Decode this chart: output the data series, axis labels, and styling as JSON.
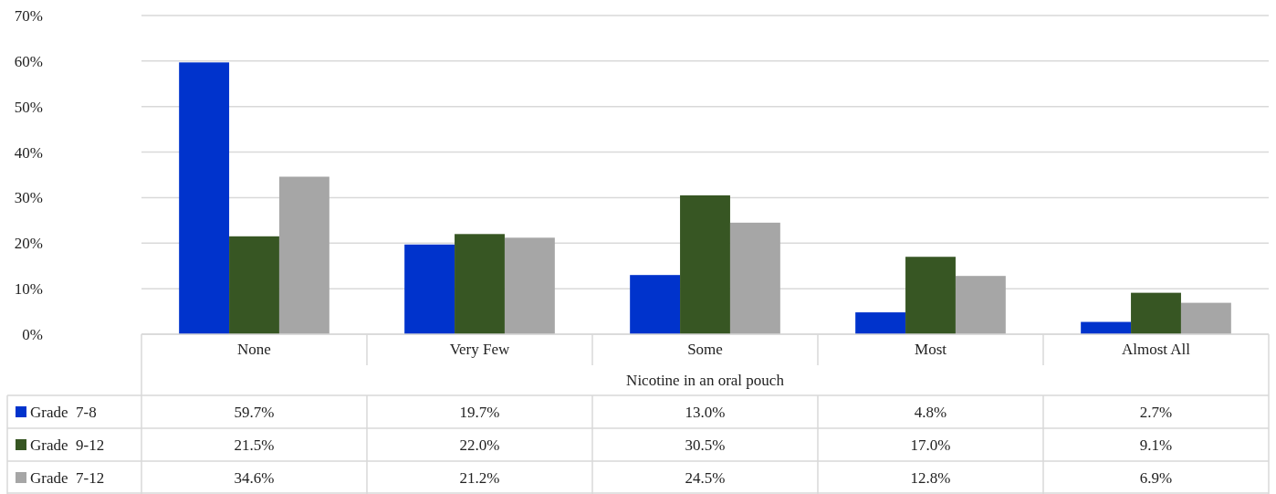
{
  "chart_data": {
    "type": "bar",
    "xlabel": "Nicotine in an oral pouch",
    "categories": [
      "None",
      "Very Few",
      "Some",
      "Most",
      "Almost All"
    ],
    "series": [
      {
        "name": "Grade  7-8",
        "color": "#0033cc",
        "values": [
          59.7,
          19.7,
          13.0,
          4.8,
          2.7
        ],
        "value_labels": [
          "59.7%",
          "19.7%",
          "13.0%",
          "4.8%",
          "2.7%"
        ]
      },
      {
        "name": "Grade  9-12",
        "color": "#375623",
        "values": [
          21.5,
          22.0,
          30.5,
          17.0,
          9.1
        ],
        "value_labels": [
          "21.5%",
          "22.0%",
          "30.5%",
          "17.0%",
          "9.1%"
        ]
      },
      {
        "name": "Grade  7-12",
        "color": "#a6a6a6",
        "values": [
          34.6,
          21.2,
          24.5,
          12.8,
          6.9
        ],
        "value_labels": [
          "34.6%",
          "21.2%",
          "24.5%",
          "12.8%",
          "6.9%"
        ]
      }
    ],
    "ylim": [
      0,
      70
    ],
    "yticks": [
      {
        "value": 0,
        "label": "0%"
      },
      {
        "value": 10,
        "label": "10%"
      },
      {
        "value": 20,
        "label": "20%"
      },
      {
        "value": 30,
        "label": "30%"
      },
      {
        "value": 40,
        "label": "40%"
      },
      {
        "value": 50,
        "label": "50%"
      },
      {
        "value": 60,
        "label": "60%"
      },
      {
        "value": 70,
        "label": "70%"
      }
    ],
    "grid": "y",
    "legend": "bottom"
  }
}
